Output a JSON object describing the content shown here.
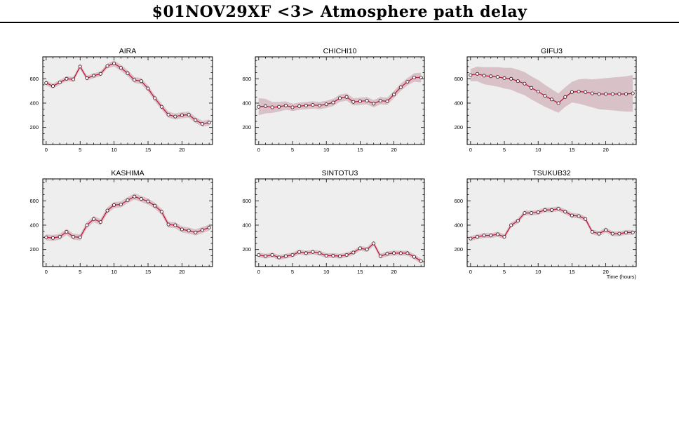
{
  "page": {
    "title": "$01NOV29XF <3>  Atmosphere path delay"
  },
  "colors": {
    "plot_background": "#eeeeee",
    "band": "#d8c2c7",
    "line": "#c41840",
    "marker_fill": "#ffffff",
    "axis": "#000000"
  },
  "chart_data": [
    {
      "type": "line",
      "title": "AIRA",
      "xlabel": "",
      "ylabel": "",
      "xlim": [
        -0.5,
        24.5
      ],
      "ylim": [
        60,
        780
      ],
      "xticks": [
        0,
        5,
        10,
        15,
        20
      ],
      "yticks": [
        200,
        400,
        600
      ],
      "x": [
        0,
        1,
        2,
        3,
        4,
        5,
        6,
        7,
        8,
        9,
        10,
        11,
        12,
        13,
        14,
        15,
        16,
        17,
        18,
        19,
        20,
        21,
        22,
        23,
        24
      ],
      "y": [
        565,
        540,
        570,
        600,
        595,
        700,
        605,
        625,
        640,
        705,
        725,
        690,
        645,
        590,
        580,
        520,
        440,
        370,
        305,
        290,
        300,
        305,
        260,
        230,
        240
      ],
      "err": [
        20,
        20,
        20,
        20,
        20,
        20,
        20,
        20,
        20,
        20,
        25,
        25,
        25,
        25,
        25,
        25,
        25,
        25,
        25,
        25,
        25,
        25,
        25,
        25,
        25
      ]
    },
    {
      "type": "line",
      "title": "CHICHI10",
      "xlabel": "",
      "ylabel": "",
      "xlim": [
        -0.5,
        24.5
      ],
      "ylim": [
        60,
        780
      ],
      "xticks": [
        0,
        5,
        10,
        15,
        20
      ],
      "yticks": [
        200,
        400,
        600
      ],
      "x": [
        0,
        1,
        2,
        3,
        4,
        5,
        6,
        7,
        8,
        9,
        10,
        11,
        12,
        13,
        14,
        15,
        16,
        17,
        18,
        19,
        20,
        21,
        22,
        23,
        24
      ],
      "y": [
        370,
        375,
        365,
        370,
        380,
        365,
        375,
        380,
        385,
        380,
        390,
        405,
        440,
        450,
        410,
        415,
        420,
        395,
        420,
        415,
        470,
        530,
        575,
        610,
        610
      ],
      "err": [
        70,
        60,
        45,
        40,
        35,
        30,
        30,
        30,
        30,
        30,
        30,
        30,
        30,
        30,
        30,
        30,
        30,
        30,
        30,
        30,
        30,
        30,
        30,
        35,
        40
      ]
    },
    {
      "type": "line",
      "title": "GIFU3",
      "xlabel": "",
      "ylabel": "",
      "xlim": [
        -0.5,
        24.5
      ],
      "ylim": [
        60,
        780
      ],
      "xticks": [
        0,
        5,
        10,
        15,
        20
      ],
      "yticks": [
        200,
        400,
        600
      ],
      "x": [
        0,
        1,
        2,
        3,
        4,
        5,
        6,
        7,
        8,
        9,
        10,
        11,
        12,
        13,
        14,
        15,
        16,
        17,
        18,
        19,
        20,
        21,
        22,
        23,
        24
      ],
      "y": [
        630,
        640,
        625,
        620,
        615,
        605,
        600,
        580,
        560,
        525,
        495,
        460,
        430,
        400,
        450,
        490,
        495,
        490,
        480,
        475,
        475,
        475,
        475,
        475,
        480
      ],
      "err": [
        50,
        60,
        70,
        75,
        80,
        85,
        90,
        95,
        95,
        95,
        95,
        90,
        85,
        80,
        80,
        85,
        100,
        110,
        115,
        125,
        130,
        135,
        140,
        145,
        150
      ]
    },
    {
      "type": "line",
      "title": "KASHIMA",
      "xlabel": "",
      "ylabel": "",
      "xlim": [
        -0.5,
        24.5
      ],
      "ylim": [
        60,
        780
      ],
      "xticks": [
        0,
        5,
        10,
        15,
        20
      ],
      "yticks": [
        200,
        400,
        600
      ],
      "x": [
        0,
        1,
        2,
        3,
        4,
        5,
        6,
        7,
        8,
        9,
        10,
        11,
        12,
        13,
        14,
        15,
        16,
        17,
        18,
        19,
        20,
        21,
        22,
        23,
        24
      ],
      "y": [
        300,
        295,
        305,
        345,
        305,
        300,
        400,
        450,
        425,
        520,
        565,
        570,
        605,
        635,
        615,
        595,
        560,
        510,
        405,
        400,
        365,
        355,
        340,
        360,
        380
      ],
      "err": [
        25,
        25,
        25,
        25,
        25,
        25,
        25,
        25,
        25,
        25,
        25,
        25,
        25,
        25,
        25,
        25,
        25,
        25,
        25,
        25,
        25,
        25,
        25,
        25,
        25
      ]
    },
    {
      "type": "line",
      "title": "SINTOTU3",
      "xlabel": "",
      "ylabel": "",
      "xlim": [
        -0.5,
        24.5
      ],
      "ylim": [
        60,
        780
      ],
      "xticks": [
        0,
        5,
        10,
        15,
        20
      ],
      "yticks": [
        200,
        400,
        600
      ],
      "x": [
        0,
        1,
        2,
        3,
        4,
        5,
        6,
        7,
        8,
        9,
        10,
        11,
        12,
        13,
        14,
        15,
        16,
        17,
        18,
        19,
        20,
        21,
        22,
        23,
        24
      ],
      "y": [
        155,
        145,
        155,
        135,
        145,
        155,
        180,
        170,
        180,
        170,
        150,
        150,
        145,
        155,
        175,
        210,
        200,
        250,
        145,
        165,
        170,
        170,
        170,
        140,
        105
      ],
      "err": [
        20,
        20,
        20,
        20,
        20,
        20,
        20,
        20,
        20,
        20,
        20,
        20,
        20,
        20,
        20,
        20,
        20,
        20,
        20,
        20,
        20,
        20,
        20,
        20,
        20
      ]
    },
    {
      "type": "line",
      "title": "TSUKUB32",
      "xlabel": "Time (hours)",
      "ylabel": "",
      "xlim": [
        -0.5,
        24.5
      ],
      "ylim": [
        60,
        780
      ],
      "xticks": [
        0,
        5,
        10,
        15,
        20
      ],
      "yticks": [
        200,
        400,
        600
      ],
      "x": [
        0,
        1,
        2,
        3,
        4,
        5,
        6,
        7,
        8,
        9,
        10,
        11,
        12,
        13,
        14,
        15,
        16,
        17,
        18,
        19,
        20,
        21,
        22,
        23,
        24
      ],
      "y": [
        290,
        305,
        315,
        315,
        325,
        305,
        400,
        435,
        500,
        500,
        505,
        525,
        525,
        535,
        510,
        480,
        475,
        450,
        345,
        330,
        360,
        330,
        330,
        340,
        340
      ],
      "err": [
        20,
        20,
        20,
        20,
        20,
        20,
        20,
        20,
        20,
        20,
        20,
        20,
        20,
        20,
        20,
        20,
        20,
        20,
        20,
        20,
        20,
        20,
        20,
        20,
        20
      ]
    }
  ]
}
